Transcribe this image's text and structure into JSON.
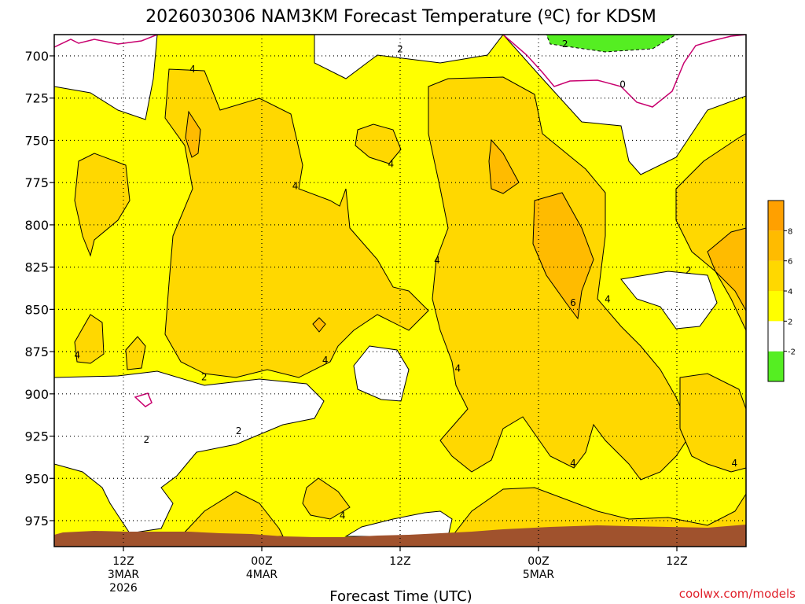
{
  "header": {
    "title": "2026030306 NAM3KM Forecast Temperature (ºC) for KDSM"
  },
  "footer": {
    "xlabel": "Forecast Time (UTC)",
    "credit": "coolwx.com/models"
  },
  "chart_data": {
    "type": "heatmap",
    "title": "2026030306 NAM3KM Forecast Temperature (ºC) for KDSM",
    "xlabel": "Forecast Time (UTC)",
    "ylabel": "",
    "y_axis": {
      "ticks": [
        700,
        725,
        750,
        775,
        800,
        825,
        850,
        875,
        900,
        925,
        950,
        975
      ],
      "range": [
        688,
        985
      ],
      "inverted": true
    },
    "x_axis": {
      "range_hours": [
        0,
        60
      ],
      "ticks": [
        {
          "hour": 6,
          "lines": [
            "12Z",
            "3MAR",
            "2026"
          ]
        },
        {
          "hour": 18,
          "lines": [
            "00Z",
            "4MAR"
          ]
        },
        {
          "hour": 30,
          "lines": [
            "12Z"
          ]
        },
        {
          "hour": 42,
          "lines": [
            "00Z",
            "5MAR"
          ]
        },
        {
          "hour": 54,
          "lines": [
            "12Z"
          ]
        }
      ]
    },
    "grid": true,
    "colorbar": {
      "placement": "right",
      "bins": [
        {
          "range": [
            -4,
            -2
          ],
          "color": "#55ee22"
        },
        {
          "range": [
            -2,
            2
          ],
          "color": "#ffffff"
        },
        {
          "range": [
            2,
            4
          ],
          "color": "#ffff00"
        },
        {
          "range": [
            4,
            6
          ],
          "color": "#ffd800"
        },
        {
          "range": [
            6,
            8
          ],
          "color": "#ffbb00"
        },
        {
          "range": [
            8,
            10
          ],
          "color": "#ffa000"
        }
      ],
      "labels": [
        "-2",
        "2",
        "4",
        "6",
        "8"
      ]
    },
    "contour_labels": [
      {
        "text": "4",
        "hour": 12.0,
        "p": 708
      },
      {
        "text": "2",
        "hour": 30.0,
        "p": 696
      },
      {
        "text": "2",
        "hour": 44.3,
        "p": 693
      },
      {
        "text": "0",
        "hour": 49.3,
        "p": 717
      },
      {
        "text": "4",
        "hour": 29.2,
        "p": 764
      },
      {
        "text": "4",
        "hour": 20.9,
        "p": 777
      },
      {
        "text": "4",
        "hour": 33.2,
        "p": 821
      },
      {
        "text": "6",
        "hour": 45.0,
        "p": 846
      },
      {
        "text": "4",
        "hour": 48.0,
        "p": 844
      },
      {
        "text": "2",
        "hour": 55.0,
        "p": 827
      },
      {
        "text": "4",
        "hour": 2.0,
        "p": 877
      },
      {
        "text": "2",
        "hour": 13.0,
        "p": 890
      },
      {
        "text": "4",
        "hour": 23.5,
        "p": 880
      },
      {
        "text": "4",
        "hour": 35.0,
        "p": 885
      },
      {
        "text": "2",
        "hour": 16.0,
        "p": 922
      },
      {
        "text": "2",
        "hour": 8.0,
        "p": 927
      },
      {
        "text": "4",
        "hour": 45.0,
        "p": 941
      },
      {
        "text": "4",
        "hour": 59.0,
        "p": 941
      },
      {
        "text": "4",
        "hour": 25.0,
        "p": 972
      }
    ],
    "terrain": {
      "color": "#a0522d",
      "note": "ground level near 980 mb"
    }
  }
}
